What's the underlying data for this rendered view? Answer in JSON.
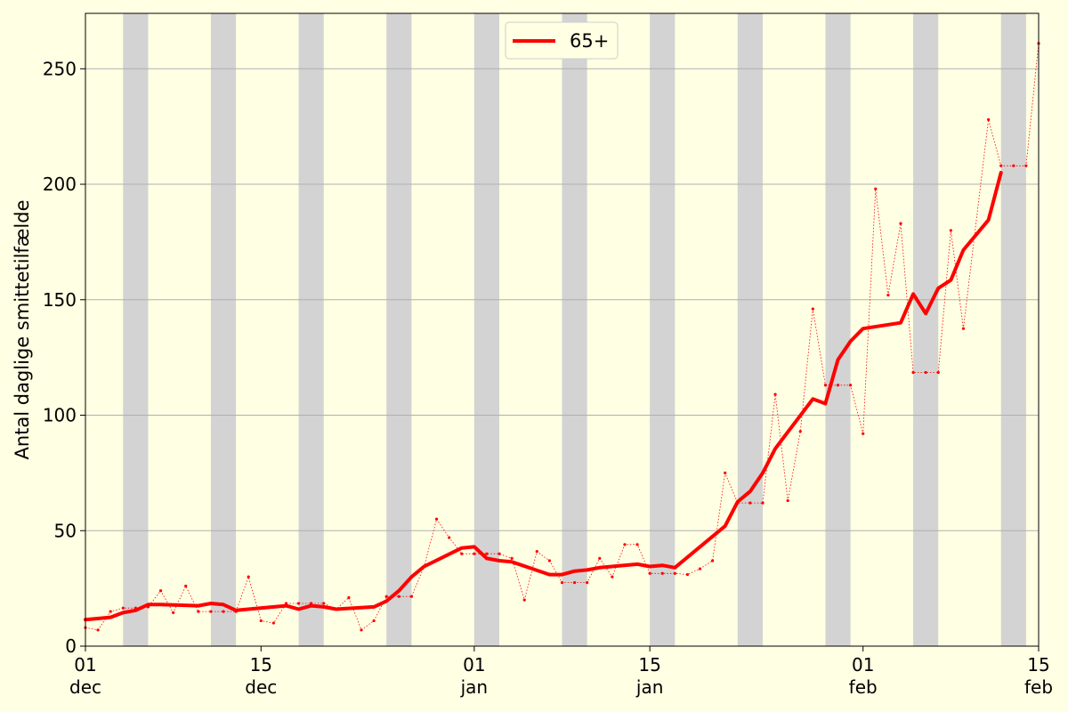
{
  "chart_data": {
    "type": "line",
    "title": "",
    "xlabel": "",
    "ylabel": "Antal daglige smittetilfælde",
    "ylim": [
      0,
      274
    ],
    "xlim": [
      "2020-12-01",
      "2021-02-15"
    ],
    "grid": "horizontal",
    "legend_position": "top-center",
    "background_color": "#ffffe3",
    "weekend_band_color": "#d3d3d3",
    "series_color": "#ff0000",
    "y_ticks": [
      0,
      50,
      100,
      150,
      200,
      250
    ],
    "x_ticks": [
      {
        "date": "2020-12-01",
        "day": "01",
        "month": "dec"
      },
      {
        "date": "2020-12-15",
        "day": "15",
        "month": "dec"
      },
      {
        "date": "2021-01-01",
        "day": "01",
        "month": "jan"
      },
      {
        "date": "2021-01-15",
        "day": "15",
        "month": "jan"
      },
      {
        "date": "2021-02-01",
        "day": "01",
        "month": "feb"
      },
      {
        "date": "2021-02-15",
        "day": "15",
        "month": "feb"
      }
    ],
    "weekends": [
      [
        "2020-12-04",
        "2020-12-06"
      ],
      [
        "2020-12-11",
        "2020-12-13"
      ],
      [
        "2020-12-18",
        "2020-12-20"
      ],
      [
        "2020-12-25",
        "2020-12-27"
      ],
      [
        "2021-01-01",
        "2021-01-03"
      ],
      [
        "2021-01-08",
        "2021-01-10"
      ],
      [
        "2021-01-15",
        "2021-01-17"
      ],
      [
        "2021-01-22",
        "2021-01-24"
      ],
      [
        "2021-01-29",
        "2021-01-31"
      ],
      [
        "2021-02-05",
        "2021-02-07"
      ],
      [
        "2021-02-12",
        "2021-02-14"
      ]
    ],
    "series": [
      {
        "name": "65+",
        "style": "bold-line",
        "points": [
          [
            "2020-12-01",
            11.5
          ],
          [
            "2020-12-03",
            12.5
          ],
          [
            "2020-12-04",
            14.5
          ],
          [
            "2020-12-05",
            15.5
          ],
          [
            "2020-12-06",
            18
          ],
          [
            "2020-12-07",
            18
          ],
          [
            "2020-12-10",
            17.5
          ],
          [
            "2020-12-11",
            18.5
          ],
          [
            "2020-12-12",
            18
          ],
          [
            "2020-12-13",
            15.5
          ],
          [
            "2020-12-17",
            17.5
          ],
          [
            "2020-12-18",
            16
          ],
          [
            "2020-12-19",
            17.5
          ],
          [
            "2020-12-20",
            17
          ],
          [
            "2020-12-21",
            16
          ],
          [
            "2020-12-24",
            17
          ],
          [
            "2020-12-25",
            19.5
          ],
          [
            "2020-12-26",
            24
          ],
          [
            "2020-12-27",
            30
          ],
          [
            "2020-12-28",
            34.5
          ],
          [
            "2020-12-31",
            42.5
          ],
          [
            "2021-01-01",
            43
          ],
          [
            "2021-01-02",
            38
          ],
          [
            "2021-01-03",
            37
          ],
          [
            "2021-01-04",
            36.5
          ],
          [
            "2021-01-07",
            31
          ],
          [
            "2021-01-08",
            31
          ],
          [
            "2021-01-09",
            32.5
          ],
          [
            "2021-01-10",
            33
          ],
          [
            "2021-01-11",
            34
          ],
          [
            "2021-01-14",
            35.5
          ],
          [
            "2021-01-15",
            34.5
          ],
          [
            "2021-01-16",
            35
          ],
          [
            "2021-01-17",
            34
          ],
          [
            "2021-01-21",
            52
          ],
          [
            "2021-01-22",
            62.5
          ],
          [
            "2021-01-23",
            67
          ],
          [
            "2021-01-24",
            75
          ],
          [
            "2021-01-25",
            85.5
          ],
          [
            "2021-01-28",
            107
          ],
          [
            "2021-01-29",
            105
          ],
          [
            "2021-01-30",
            124
          ],
          [
            "2021-01-31",
            132
          ],
          [
            "2021-02-01",
            137.5
          ],
          [
            "2021-02-04",
            140
          ],
          [
            "2021-02-05",
            152.5
          ],
          [
            "2021-02-06",
            144
          ],
          [
            "2021-02-07",
            155
          ],
          [
            "2021-02-08",
            158.5
          ],
          [
            "2021-02-09",
            171.5
          ],
          [
            "2021-02-11",
            184.5
          ],
          [
            "2021-02-12",
            205
          ]
        ]
      },
      {
        "name": "",
        "style": "dotted-daily",
        "points": [
          [
            "2020-12-01",
            8
          ],
          [
            "2020-12-02",
            7
          ],
          [
            "2020-12-03",
            15
          ],
          [
            "2020-12-04",
            16.5
          ],
          [
            "2020-12-05",
            16.5
          ],
          [
            "2020-12-06",
            17
          ],
          [
            "2020-12-07",
            24
          ],
          [
            "2020-12-08",
            14.5
          ],
          [
            "2020-12-09",
            26
          ],
          [
            "2020-12-10",
            15
          ],
          [
            "2020-12-11",
            15
          ],
          [
            "2020-12-12",
            15
          ],
          [
            "2020-12-13",
            15
          ],
          [
            "2020-12-14",
            30
          ],
          [
            "2020-12-15",
            11
          ],
          [
            "2020-12-16",
            10
          ],
          [
            "2020-12-17",
            18.5
          ],
          [
            "2020-12-18",
            18.5
          ],
          [
            "2020-12-19",
            18.5
          ],
          [
            "2020-12-20",
            18.5
          ],
          [
            "2020-12-21",
            16
          ],
          [
            "2020-12-22",
            21
          ],
          [
            "2020-12-23",
            7
          ],
          [
            "2020-12-24",
            11
          ],
          [
            "2020-12-25",
            21.5
          ],
          [
            "2020-12-26",
            21.5
          ],
          [
            "2020-12-27",
            21.5
          ],
          [
            "2020-12-28",
            34.5
          ],
          [
            "2020-12-29",
            55
          ],
          [
            "2020-12-30",
            47
          ],
          [
            "2020-12-31",
            40
          ],
          [
            "2021-01-01",
            40
          ],
          [
            "2021-01-02",
            40
          ],
          [
            "2021-01-03",
            40
          ],
          [
            "2021-01-04",
            38
          ],
          [
            "2021-01-05",
            20
          ],
          [
            "2021-01-06",
            41
          ],
          [
            "2021-01-07",
            37
          ],
          [
            "2021-01-08",
            27.5
          ],
          [
            "2021-01-09",
            27.5
          ],
          [
            "2021-01-10",
            27.5
          ],
          [
            "2021-01-11",
            38
          ],
          [
            "2021-01-12",
            30
          ],
          [
            "2021-01-13",
            44
          ],
          [
            "2021-01-14",
            44
          ],
          [
            "2021-01-15",
            31.5
          ],
          [
            "2021-01-16",
            31.5
          ],
          [
            "2021-01-17",
            31.5
          ],
          [
            "2021-01-18",
            31
          ],
          [
            "2021-01-19",
            33.5
          ],
          [
            "2021-01-20",
            37
          ],
          [
            "2021-01-21",
            75
          ],
          [
            "2021-01-22",
            62
          ],
          [
            "2021-01-23",
            62
          ],
          [
            "2021-01-24",
            62
          ],
          [
            "2021-01-25",
            109
          ],
          [
            "2021-01-26",
            63
          ],
          [
            "2021-01-27",
            93
          ],
          [
            "2021-01-28",
            146
          ],
          [
            "2021-01-29",
            113
          ],
          [
            "2021-01-30",
            113
          ],
          [
            "2021-01-31",
            113
          ],
          [
            "2021-02-01",
            92
          ],
          [
            "2021-02-02",
            198
          ],
          [
            "2021-02-03",
            152
          ],
          [
            "2021-02-04",
            183
          ],
          [
            "2021-02-05",
            118.5
          ],
          [
            "2021-02-06",
            118.5
          ],
          [
            "2021-02-07",
            118.5
          ],
          [
            "2021-02-08",
            180
          ],
          [
            "2021-02-09",
            137.5
          ],
          [
            "2021-02-11",
            228
          ],
          [
            "2021-02-12",
            208
          ],
          [
            "2021-02-13",
            208
          ],
          [
            "2021-02-14",
            208
          ],
          [
            "2021-02-15",
            261
          ]
        ]
      }
    ]
  }
}
